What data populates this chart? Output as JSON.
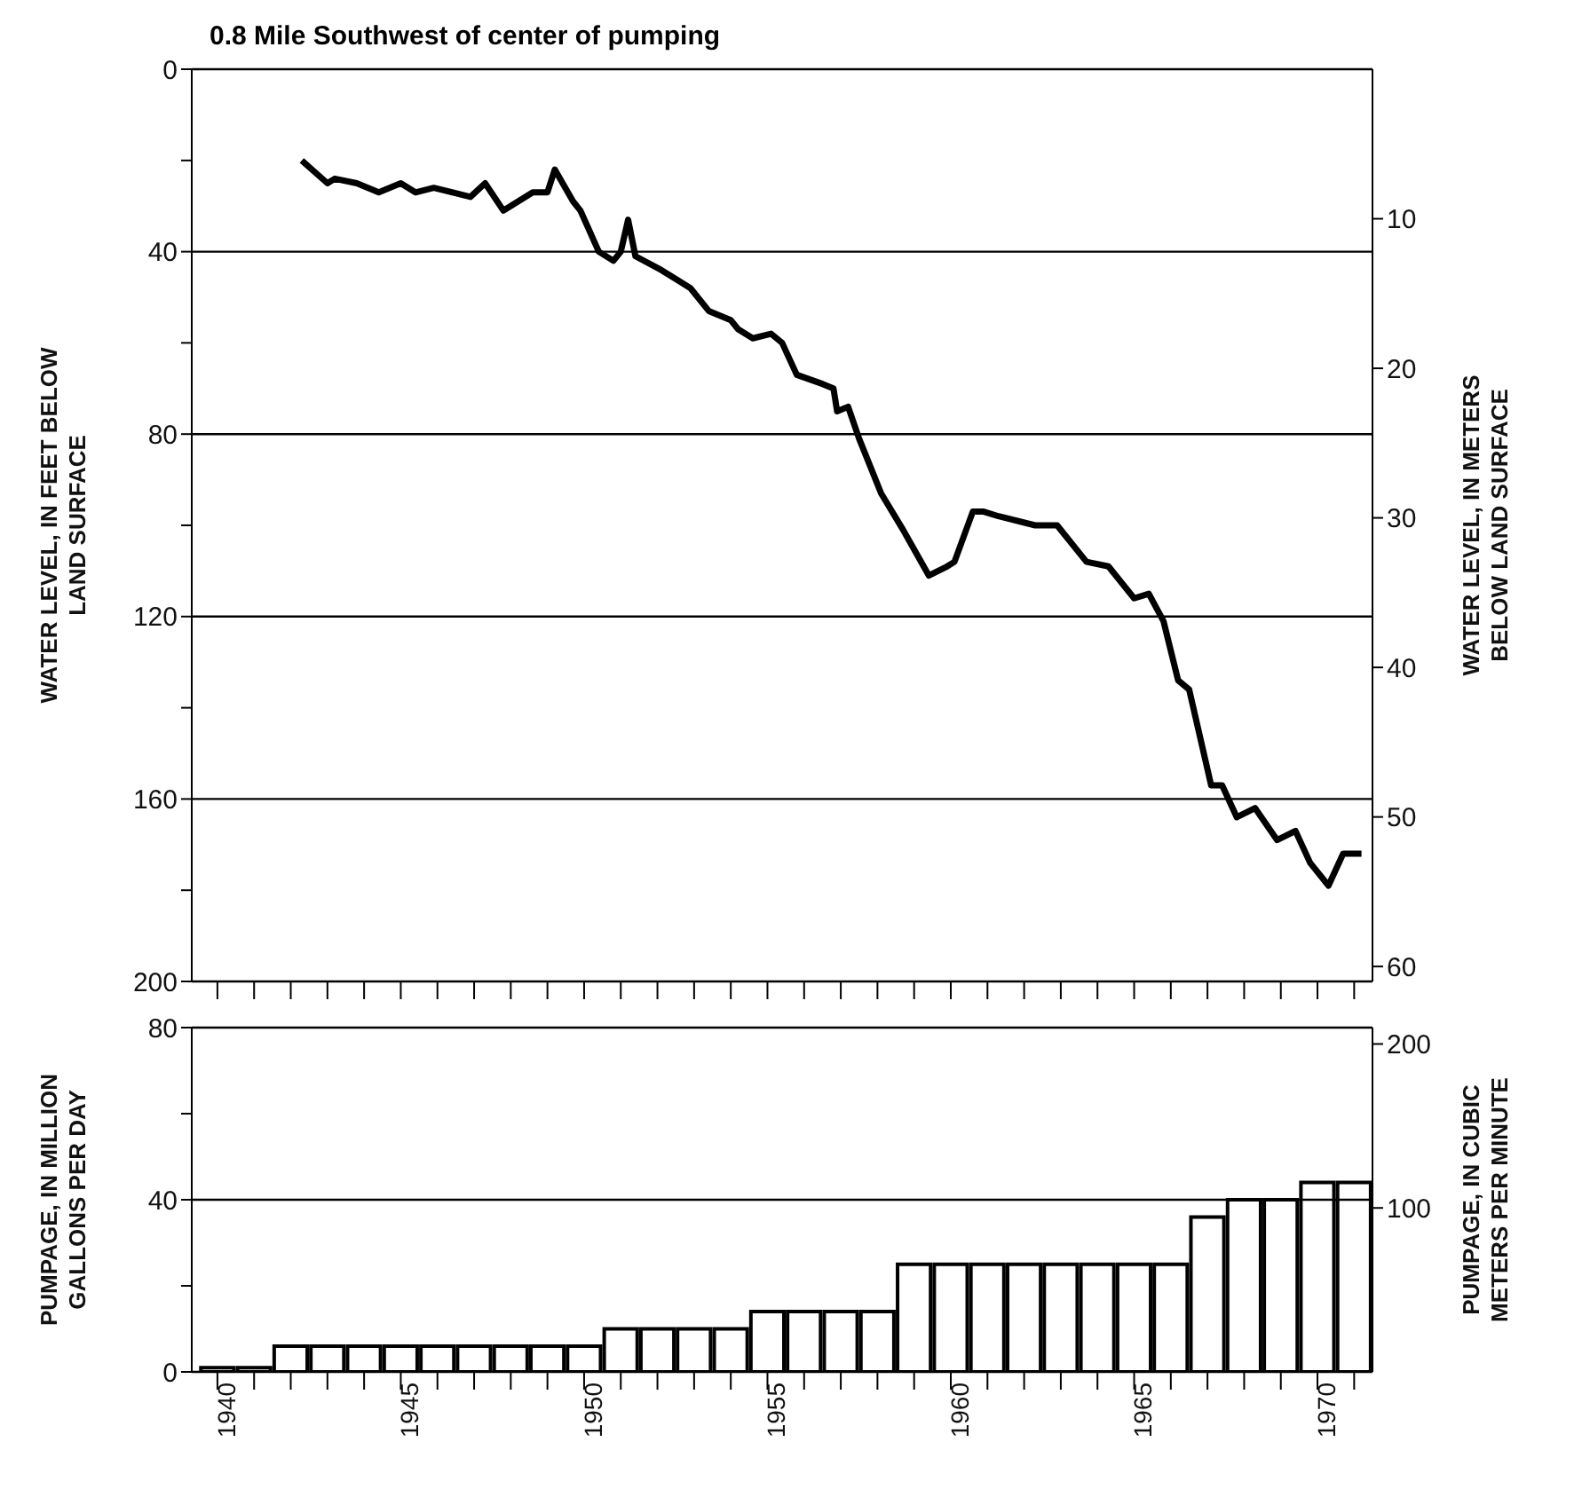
{
  "chart_data": [
    {
      "type": "line",
      "title": "0.8 Mile Southwest of center of pumping",
      "ylabel": "WATER LEVEL, IN FEET BELOW LAND SURFACE",
      "y2label": "WATER LEVEL, IN METERS BELOW LAND SURFACE",
      "xlim": [
        1939.3,
        1971.5
      ],
      "xticks": [
        1940,
        {
          "value": 1941,
          "label": null
        },
        {
          "value": 1942,
          "label": null
        },
        {
          "value": 1943,
          "label": null
        },
        {
          "value": 1944,
          "label": null
        },
        1945,
        {
          "value": 1946,
          "label": null
        },
        {
          "value": 1947,
          "label": null
        },
        {
          "value": 1948,
          "label": null
        },
        {
          "value": 1949,
          "label": null
        },
        1950,
        {
          "value": 1951,
          "label": null
        },
        {
          "value": 1952,
          "label": null
        },
        {
          "value": 1953,
          "label": null
        },
        {
          "value": 1954,
          "label": null
        },
        1955,
        {
          "value": 1956,
          "label": null
        },
        {
          "value": 1957,
          "label": null
        },
        {
          "value": 1958,
          "label": null
        },
        {
          "value": 1959,
          "label": null
        },
        1960,
        {
          "value": 1961,
          "label": null
        },
        {
          "value": 1962,
          "label": null
        },
        {
          "value": 1963,
          "label": null
        },
        {
          "value": 1964,
          "label": null
        },
        1965,
        {
          "value": 1966,
          "label": null
        },
        {
          "value": 1967,
          "label": null
        },
        {
          "value": 1968,
          "label": null
        },
        {
          "value": 1969,
          "label": null
        },
        1970,
        {
          "value": 1971,
          "label": null
        }
      ],
      "ylim": [
        200,
        0
      ],
      "yticks": [
        0,
        {
          "value": 20,
          "label": null
        },
        40,
        {
          "value": 60,
          "label": null
        },
        80,
        {
          "value": 100,
          "label": null
        },
        120,
        {
          "value": 140,
          "label": null
        },
        160,
        {
          "value": 180,
          "label": null
        },
        200
      ],
      "y2lim": [
        61,
        0
      ],
      "y2ticks": [
        10,
        20,
        30,
        40,
        50,
        60
      ],
      "grid": "y",
      "tick_labels": "y",
      "series": [
        {
          "color": "#000000",
          "x": [
            1942.3,
            1943.0,
            1943.2,
            1943.8,
            1944.4,
            1945.0,
            1945.4,
            1945.9,
            1946.9,
            1947.3,
            1947.8,
            1948.6,
            1949.0,
            1949.2,
            1949.7,
            1949.9,
            1950.4,
            1950.8,
            1951.0,
            1951.2,
            1951.4,
            1952.1,
            1952.9,
            1953.4,
            1954.0,
            1954.2,
            1954.6,
            1955.1,
            1955.4,
            1955.8,
            1956.5,
            1956.8,
            1956.9,
            1957.2,
            1957.5,
            1958.1,
            1958.7,
            1959.4,
            1959.9,
            1960.1,
            1960.6,
            1960.9,
            1961.3,
            1962.3,
            1962.9,
            1963.7,
            1964.3,
            1965.0,
            1965.4,
            1965.8,
            1966.2,
            1966.5,
            1967.1,
            1967.4,
            1967.8,
            1968.3,
            1968.9,
            1969.4,
            1969.8,
            1970.3,
            1970.7,
            1971.2
          ],
          "values": [
            20,
            25,
            24,
            25,
            27,
            25,
            27,
            26,
            28,
            25,
            31,
            27,
            27,
            22,
            29,
            31,
            40,
            42,
            40,
            33,
            41,
            44,
            48,
            53,
            55,
            57,
            59,
            58,
            60,
            67,
            69,
            70,
            75,
            74,
            81,
            93,
            101,
            111,
            109,
            108,
            97,
            97,
            98,
            100,
            100,
            108,
            109,
            116,
            115,
            121,
            134,
            136,
            157,
            157,
            164,
            162,
            169,
            167,
            174,
            179,
            172,
            172
          ]
        }
      ]
    },
    {
      "type": "bar",
      "ylabel": "PUMPAGE, IN MILLION GALLONS PER DAY",
      "y2label": "PUMPAGE, IN CUBIC METERS PER MINUTE",
      "xlim": [
        1939.3,
        1971.5
      ],
      "xticks": [
        1940,
        {
          "value": 1941,
          "label": null
        },
        {
          "value": 1942,
          "label": null
        },
        {
          "value": 1943,
          "label": null
        },
        {
          "value": 1944,
          "label": null
        },
        1945,
        {
          "value": 1946,
          "label": null
        },
        {
          "value": 1947,
          "label": null
        },
        {
          "value": 1948,
          "label": null
        },
        {
          "value": 1949,
          "label": null
        },
        1950,
        {
          "value": 1951,
          "label": null
        },
        {
          "value": 1952,
          "label": null
        },
        {
          "value": 1953,
          "label": null
        },
        {
          "value": 1954,
          "label": null
        },
        1955,
        {
          "value": 1956,
          "label": null
        },
        {
          "value": 1957,
          "label": null
        },
        {
          "value": 1958,
          "label": null
        },
        {
          "value": 1959,
          "label": null
        },
        1960,
        {
          "value": 1961,
          "label": null
        },
        {
          "value": 1962,
          "label": null
        },
        {
          "value": 1963,
          "label": null
        },
        {
          "value": 1964,
          "label": null
        },
        1965,
        {
          "value": 1966,
          "label": null
        },
        {
          "value": 1967,
          "label": null
        },
        {
          "value": 1968,
          "label": null
        },
        {
          "value": 1969,
          "label": null
        },
        1970,
        {
          "value": 1971,
          "label": null
        }
      ],
      "ylim": [
        0,
        80
      ],
      "yticks": [
        0,
        {
          "value": 20,
          "label": null
        },
        40,
        {
          "value": 60,
          "label": null
        },
        80
      ],
      "y2lim": [
        0,
        210
      ],
      "y2ticks": [
        100,
        200
      ],
      "grid": "y",
      "x": [
        1940,
        1941,
        1942,
        1943,
        1944,
        1945,
        1946,
        1947,
        1948,
        1949,
        1950,
        1951,
        1952,
        1953,
        1954,
        1955,
        1956,
        1957,
        1958,
        1959,
        1960,
        1961,
        1962,
        1963,
        1964,
        1965,
        1966,
        1967,
        1968,
        1969,
        1970,
        1971
      ],
      "series": [
        {
          "color": "#ffffff",
          "values": [
            1,
            1,
            6,
            6,
            6,
            6,
            6,
            6,
            6,
            6,
            6,
            10,
            10,
            10,
            10,
            14,
            14,
            14,
            14,
            25,
            25,
            25,
            25,
            25,
            25,
            25,
            25,
            36,
            40,
            40,
            44,
            44
          ]
        }
      ]
    }
  ]
}
